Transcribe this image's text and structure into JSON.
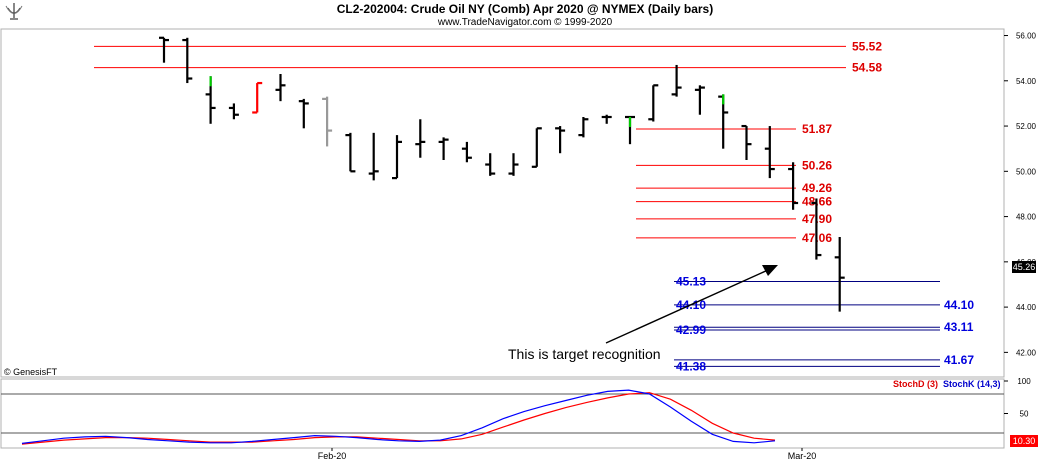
{
  "header": {
    "title": "CL2-202004:  Crude Oil NY (Comb) Apr 2020 @ NYMEX  (Daily bars)",
    "subtitle": "www.TradeNavigator.com © 1999-2020",
    "logo_icon": "candelabra-icon"
  },
  "watermark": "© GenesisFT",
  "annotation": {
    "text": "This is target recognition"
  },
  "price_axis": {
    "ticks": [
      "56.00",
      "54.00",
      "52.00",
      "50.00",
      "48.00",
      "46.00",
      "44.00",
      "42.00"
    ],
    "current_price": "45.26"
  },
  "oscillator_axis": {
    "ticks": [
      "100",
      "50",
      "0"
    ],
    "current_value": "10.30"
  },
  "oscillator_legend": {
    "stoch_d": "StochD (3)",
    "stoch_k": "StochK (14,3)"
  },
  "time_axis": {
    "ticks": [
      "Feb-20",
      "Mar-20"
    ]
  },
  "colors": {
    "bar_up": "#000000",
    "resistance_line": "#ff0000",
    "resistance_label": "#dd0000",
    "support_label": "#0000dd",
    "support_line": "#000080",
    "stoch_d": "#ff0000",
    "stoch_k": "#0000ff",
    "gray_bar": "#999999",
    "red_bar": "#ff0000",
    "green_tick": "#00cc00"
  },
  "chart_data": {
    "type": "ohlc",
    "ylim": [
      41.0,
      56.2
    ],
    "bars": [
      {
        "o": 55.9,
        "h": 55.9,
        "l": 54.8,
        "c": 55.8
      },
      {
        "o": 55.8,
        "h": 55.9,
        "l": 53.9,
        "c": 54.1
      },
      {
        "o": 53.4,
        "h": 54.2,
        "l": 52.1,
        "c": 52.8,
        "close_color": "green"
      },
      {
        "o": 52.8,
        "h": 53.0,
        "l": 52.3,
        "c": 52.5
      },
      {
        "o": 52.6,
        "h": 53.9,
        "l": 52.6,
        "c": 53.9,
        "color": "red"
      },
      {
        "o": 53.6,
        "h": 54.3,
        "l": 53.1,
        "c": 53.8
      },
      {
        "o": 53.1,
        "h": 53.2,
        "l": 51.9,
        "c": 53.0
      },
      {
        "o": 53.2,
        "h": 53.3,
        "l": 51.1,
        "c": 51.8,
        "color": "gray"
      },
      {
        "o": 51.6,
        "h": 51.7,
        "l": 50.0,
        "c": 50.0
      },
      {
        "o": 49.9,
        "h": 51.7,
        "l": 49.6,
        "c": 50.0
      },
      {
        "o": 49.7,
        "h": 51.6,
        "l": 49.7,
        "c": 51.3
      },
      {
        "o": 51.2,
        "h": 52.3,
        "l": 50.6,
        "c": 51.3
      },
      {
        "o": 51.3,
        "h": 51.5,
        "l": 50.5,
        "c": 51.4
      },
      {
        "o": 51.0,
        "h": 51.3,
        "l": 50.4,
        "c": 50.6
      },
      {
        "o": 50.3,
        "h": 50.8,
        "l": 49.8,
        "c": 49.9
      },
      {
        "o": 49.9,
        "h": 50.8,
        "l": 49.8,
        "c": 50.3
      },
      {
        "o": 50.2,
        "h": 51.9,
        "l": 50.2,
        "c": 51.9
      },
      {
        "o": 51.9,
        "h": 52.0,
        "l": 50.8,
        "c": 51.8
      },
      {
        "o": 51.6,
        "h": 52.4,
        "l": 51.5,
        "c": 52.3
      },
      {
        "o": 52.4,
        "h": 52.5,
        "l": 52.1,
        "c": 52.4
      },
      {
        "o": 52.4,
        "h": 52.4,
        "l": 51.2,
        "c": 52.4,
        "close_color": "green"
      },
      {
        "o": 52.3,
        "h": 53.8,
        "l": 52.2,
        "c": 53.8
      },
      {
        "o": 53.4,
        "h": 54.7,
        "l": 53.3,
        "c": 53.7
      },
      {
        "o": 53.6,
        "h": 53.8,
        "l": 52.5,
        "c": 53.7
      },
      {
        "o": 53.3,
        "h": 53.4,
        "l": 51.0,
        "c": 52.6,
        "close_color": "green"
      },
      {
        "o": 52.0,
        "h": 52.0,
        "l": 50.5,
        "c": 51.2
      },
      {
        "o": 51.0,
        "h": 52.0,
        "l": 49.7,
        "c": 50.1
      },
      {
        "o": 50.1,
        "h": 50.4,
        "l": 48.3,
        "c": 48.6
      },
      {
        "o": 48.6,
        "h": 48.8,
        "l": 46.1,
        "c": 46.3
      },
      {
        "o": 46.2,
        "h": 47.1,
        "l": 43.8,
        "c": 45.3
      }
    ],
    "resistance_levels": [
      {
        "value": 55.52,
        "label": "55.52"
      },
      {
        "value": 54.58,
        "label": "54.58"
      },
      {
        "value": 51.87,
        "label": "51.87"
      },
      {
        "value": 50.26,
        "label": "50.26"
      },
      {
        "value": 49.26,
        "label": "49.26"
      },
      {
        "value": 48.66,
        "label": "48.66"
      },
      {
        "value": 47.9,
        "label": "47.90"
      },
      {
        "value": 47.06,
        "label": "47.06"
      }
    ],
    "support_levels": [
      {
        "value": 45.13,
        "label": "45.13"
      },
      {
        "value": 44.1,
        "label": "44.10",
        "label_right": "44.10"
      },
      {
        "value": 43.11,
        "label": "",
        "label_right": "43.11"
      },
      {
        "value": 42.99,
        "label": "42.99",
        "label_right": ""
      },
      {
        "value": 41.67,
        "label": "",
        "label_right": "41.67"
      },
      {
        "value": 41.38,
        "label": "41.38",
        "label_right": ""
      }
    ],
    "oscillator": {
      "ylim": [
        0,
        100
      ],
      "stoch_k": [
        4,
        8,
        12,
        14,
        15,
        13,
        10,
        8,
        6,
        5,
        5,
        7,
        10,
        13,
        16,
        15,
        13,
        10,
        8,
        7,
        9,
        16,
        28,
        42,
        53,
        62,
        70,
        78,
        84,
        86,
        80,
        60,
        38,
        18,
        7,
        5,
        8
      ],
      "stoch_d": [
        3,
        6,
        9,
        11,
        13,
        13,
        12,
        10,
        8,
        6,
        6,
        6,
        8,
        10,
        13,
        14,
        14,
        12,
        10,
        8,
        8,
        11,
        18,
        29,
        40,
        50,
        59,
        67,
        74,
        80,
        82,
        72,
        55,
        35,
        20,
        12,
        9
      ]
    }
  }
}
